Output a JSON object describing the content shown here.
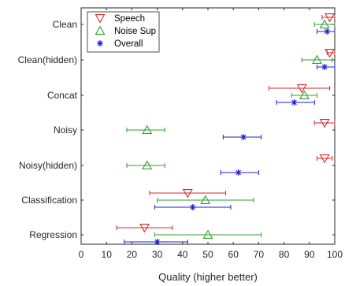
{
  "chart_data": {
    "type": "scatter",
    "title": "",
    "xlabel": "Quality (higher better)",
    "ylabel": "",
    "xlim": [
      0,
      100
    ],
    "xticks": [
      0,
      10,
      20,
      30,
      40,
      50,
      60,
      70,
      80,
      90,
      100
    ],
    "grid": false,
    "legend_position": "top-left",
    "categories": [
      "Clean",
      "Clean(hidden)",
      "Concat",
      "Noisy",
      "Noisy(hidden)",
      "Classification",
      "Regression"
    ],
    "series": [
      {
        "name": "Speech",
        "marker": "triangle-down",
        "color": "#d62728",
        "values": [
          98,
          98,
          87,
          96,
          96,
          42,
          25
        ],
        "lower": [
          95,
          97,
          74,
          92,
          93,
          27,
          14
        ],
        "upper": [
          100,
          100,
          98,
          100,
          99,
          57,
          36
        ]
      },
      {
        "name": "Noise Sup",
        "marker": "triangle-up",
        "color": "#2ca02c",
        "values": [
          96,
          93,
          88,
          26,
          26,
          49,
          50
        ],
        "lower": [
          92,
          87,
          83,
          18,
          18,
          30,
          29
        ],
        "upper": [
          100,
          99,
          93,
          33,
          33,
          68,
          71
        ]
      },
      {
        "name": "Overall",
        "marker": "asterisk",
        "color": "#1f1fd6",
        "values": [
          97,
          96,
          84,
          64,
          62,
          44,
          30
        ],
        "lower": [
          93,
          93,
          77,
          56,
          55,
          29,
          17
        ],
        "upper": [
          100,
          100,
          92,
          71,
          70,
          59,
          42
        ]
      }
    ]
  }
}
